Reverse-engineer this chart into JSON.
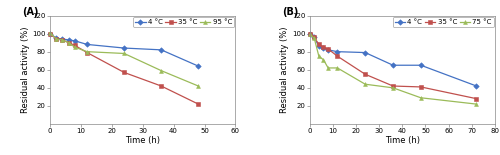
{
  "panel_A": {
    "title": "(A)",
    "xlabel": "Time (h)",
    "ylabel": "Residual activity (%)",
    "xlim": [
      0,
      60
    ],
    "ylim": [
      0,
      120
    ],
    "xticks": [
      0,
      10,
      20,
      30,
      40,
      50,
      60
    ],
    "yticks": [
      20,
      40,
      60,
      80,
      100,
      120
    ],
    "series": [
      {
        "label": "4 °C",
        "color": "#4472C4",
        "marker": "D",
        "x": [
          0,
          2,
          4,
          6,
          8,
          12,
          24,
          36,
          48
        ],
        "y": [
          100,
          95,
          94,
          93,
          92,
          88,
          84,
          82,
          64
        ]
      },
      {
        "label": "35 °C",
        "color": "#C0504D",
        "marker": "s",
        "x": [
          0,
          2,
          4,
          6,
          8,
          12,
          24,
          36,
          48
        ],
        "y": [
          100,
          94,
          93,
          90,
          87,
          79,
          57,
          42,
          22
        ]
      },
      {
        "label": "95 °C",
        "color": "#9BBB59",
        "marker": "^",
        "x": [
          0,
          2,
          4,
          6,
          8,
          12,
          24,
          36,
          48
        ],
        "y": [
          101,
          94,
          93,
          90,
          85,
          80,
          78,
          59,
          42
        ]
      }
    ]
  },
  "panel_B": {
    "title": "(B)",
    "xlabel": "Time (h)",
    "ylabel": "Residual activity (%)",
    "xlim": [
      0,
      80
    ],
    "ylim": [
      0,
      120
    ],
    "xticks": [
      0,
      10,
      20,
      30,
      40,
      50,
      60,
      70,
      80
    ],
    "yticks": [
      20,
      40,
      60,
      80,
      100,
      120
    ],
    "series": [
      {
        "label": "4 °C",
        "color": "#4472C4",
        "marker": "D",
        "x": [
          0,
          2,
          4,
          6,
          8,
          12,
          24,
          36,
          48,
          72
        ],
        "y": [
          100,
          96,
          86,
          84,
          82,
          80,
          79,
          65,
          65,
          42
        ]
      },
      {
        "label": "35 °C",
        "color": "#C0504D",
        "marker": "s",
        "x": [
          0,
          2,
          4,
          6,
          8,
          12,
          24,
          36,
          48,
          72
        ],
        "y": [
          100,
          96,
          88,
          85,
          83,
          75,
          55,
          42,
          41,
          28
        ]
      },
      {
        "label": "75 °C",
        "color": "#9BBB59",
        "marker": "^",
        "x": [
          0,
          2,
          4,
          6,
          8,
          12,
          24,
          36,
          48,
          72
        ],
        "y": [
          99,
          95,
          75,
          71,
          62,
          62,
          44,
          40,
          29,
          22
        ]
      }
    ]
  },
  "legend_fontsize": 5.0,
  "tick_fontsize": 5.0,
  "label_fontsize": 6.0,
  "title_fontsize": 7.0,
  "linewidth": 0.9,
  "markersize": 2.8
}
